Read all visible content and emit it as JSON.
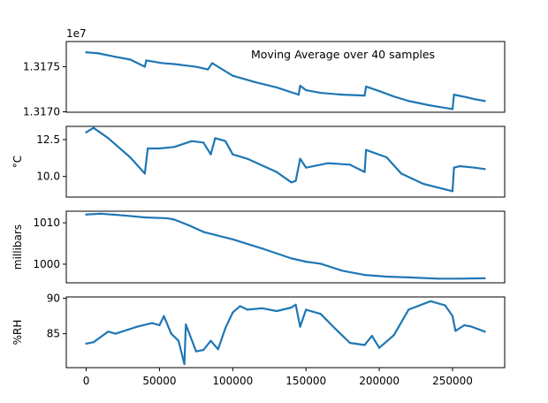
{
  "annotation": "Moving Average over 40 samples",
  "offset_label": "1e7",
  "colors": {
    "series": "#1f77b4",
    "axes": "#000000",
    "background": "#ffffff"
  },
  "chart_data": [
    {
      "type": "line",
      "title": "",
      "xlabel": "",
      "ylabel": "",
      "ylim": [
        13169950,
        13177800
      ],
      "y_ticks": [
        13170000,
        13175000
      ],
      "y_tick_labels": [
        "1.3170",
        "1.3175"
      ],
      "axis_offset_text": "1e7",
      "show_x_ticks": false,
      "annotation": "Moving Average over 40 samples",
      "grid": false,
      "x": [
        0,
        8000,
        20000,
        30000,
        40000,
        41000,
        52000,
        60000,
        75000,
        83000,
        86000,
        100000,
        115000,
        130000,
        145000,
        146000,
        150000,
        160000,
        175000,
        190000,
        191000,
        200000,
        210000,
        220000,
        235000,
        250000,
        251000,
        260000,
        265000,
        272000
      ],
      "series": [
        {
          "values": [
            13176600,
            13176500,
            13176100,
            13175800,
            13175000,
            13175700,
            13175400,
            13175300,
            13175000,
            13174700,
            13175400,
            13174000,
            13173300,
            13172700,
            13171900,
            13172900,
            13172400,
            13172100,
            13171900,
            13171800,
            13172800,
            13172300,
            13171700,
            13171200,
            13170700,
            13170300,
            13171900,
            13171600,
            13171400,
            13171200
          ]
        }
      ]
    },
    {
      "type": "line",
      "title": "",
      "xlabel": "",
      "ylabel": "°C",
      "ylim": [
        8.6,
        13.4
      ],
      "y_ticks": [
        10.0,
        12.5
      ],
      "y_tick_labels": [
        "10.0",
        "12.5"
      ],
      "show_x_ticks": false,
      "grid": false,
      "x": [
        0,
        5000,
        15000,
        30000,
        40000,
        42000,
        50000,
        60000,
        72000,
        80000,
        85000,
        88000,
        95000,
        100000,
        110000,
        130000,
        140000,
        143000,
        146000,
        150000,
        165000,
        180000,
        190000,
        191000,
        205000,
        215000,
        230000,
        250000,
        251000,
        255000,
        265000,
        272000
      ],
      "series": [
        {
          "values": [
            13.0,
            13.3,
            12.6,
            11.3,
            10.2,
            11.9,
            11.9,
            12.0,
            12.4,
            12.3,
            11.5,
            12.6,
            12.4,
            11.5,
            11.2,
            10.3,
            9.6,
            9.7,
            11.2,
            10.6,
            10.9,
            10.8,
            10.3,
            11.8,
            11.3,
            10.2,
            9.5,
            9.0,
            10.6,
            10.7,
            10.6,
            10.5
          ]
        }
      ]
    },
    {
      "type": "line",
      "title": "",
      "xlabel": "",
      "ylabel": "millibars",
      "ylim": [
        995.5,
        1012.8
      ],
      "y_ticks": [
        1000,
        1010
      ],
      "y_tick_labels": [
        "1000",
        "1010"
      ],
      "show_x_ticks": false,
      "grid": false,
      "x": [
        0,
        10000,
        25000,
        40000,
        55000,
        60000,
        70000,
        80000,
        100000,
        120000,
        140000,
        150000,
        160000,
        175000,
        190000,
        205000,
        220000,
        240000,
        255000,
        272000
      ],
      "series": [
        {
          "values": [
            1012.0,
            1012.2,
            1011.8,
            1011.3,
            1011.1,
            1010.8,
            1009.4,
            1007.8,
            1006.0,
            1003.8,
            1001.4,
            1000.6,
            1000.1,
            998.4,
            997.4,
            997.0,
            996.8,
            996.5,
            996.5,
            996.6
          ]
        }
      ]
    },
    {
      "type": "line",
      "title": "",
      "xlabel": "",
      "ylabel": "%RH",
      "ylim": [
        80.2,
        90.2
      ],
      "y_ticks": [
        85,
        90
      ],
      "y_tick_labels": [
        "85",
        "90"
      ],
      "x_ticks": [
        0,
        50000,
        100000,
        150000,
        200000,
        250000
      ],
      "x_tick_labels": [
        "0",
        "50000",
        "100000",
        "150000",
        "200000",
        "250000"
      ],
      "xlim": [
        -13600,
        285600
      ],
      "grid": false,
      "x": [
        0,
        5000,
        15000,
        20000,
        35000,
        45000,
        50000,
        53000,
        58000,
        63000,
        67000,
        68000,
        75000,
        80000,
        85000,
        90000,
        95000,
        100000,
        105000,
        110000,
        120000,
        130000,
        140000,
        143000,
        146000,
        150000,
        160000,
        170000,
        180000,
        190000,
        195000,
        200000,
        210000,
        220000,
        235000,
        245000,
        250000,
        252000,
        258000,
        263000,
        272000
      ],
      "series": [
        {
          "values": [
            83.6,
            83.8,
            85.3,
            85.0,
            86.0,
            86.5,
            86.2,
            87.5,
            85.0,
            84.0,
            80.7,
            86.3,
            82.5,
            82.7,
            84.0,
            82.8,
            85.8,
            88.0,
            88.9,
            88.4,
            88.6,
            88.2,
            88.7,
            89.1,
            86.0,
            88.4,
            87.8,
            85.7,
            83.7,
            83.4,
            84.7,
            83.0,
            84.8,
            88.4,
            89.6,
            89.0,
            87.5,
            85.4,
            86.2,
            86.0,
            85.3
          ]
        }
      ]
    }
  ]
}
